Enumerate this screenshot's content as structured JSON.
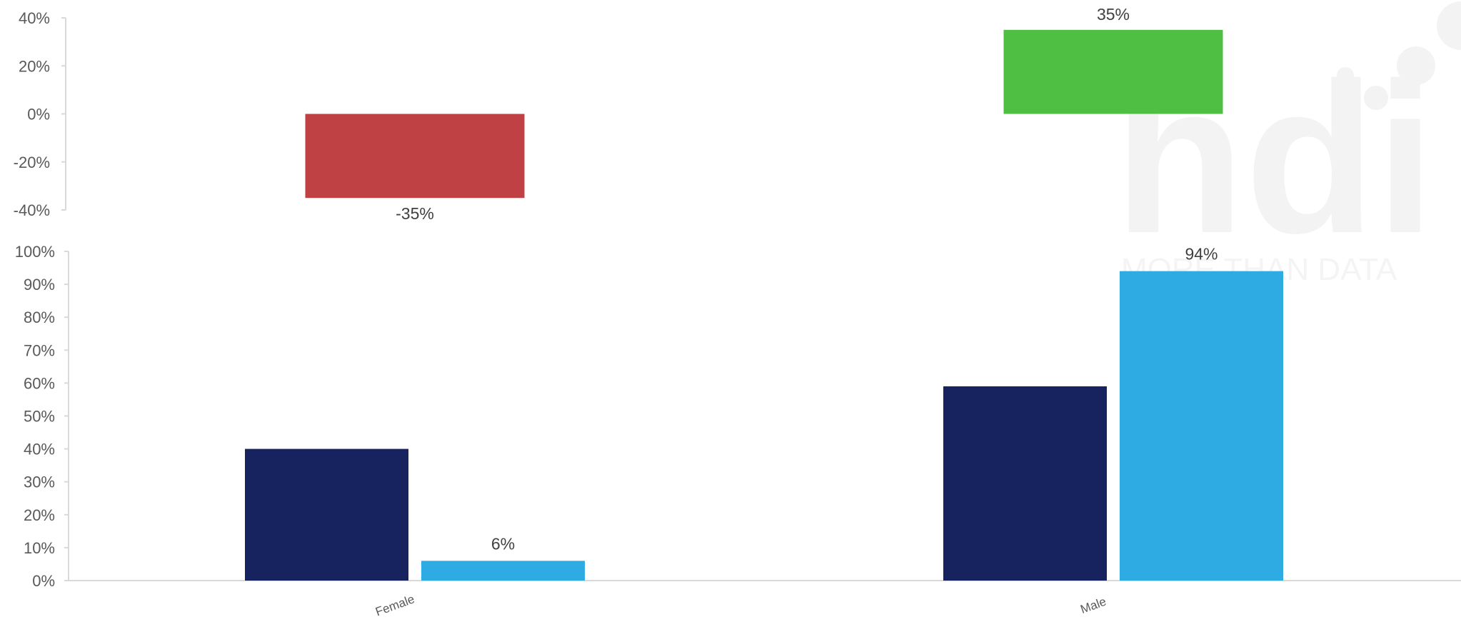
{
  "watermark": {
    "logo": "hdi",
    "tagline": "MORE THAN DATA"
  },
  "colors": {
    "negative": "#c04143",
    "positive": "#4fbf44",
    "series_dark": "#16235e",
    "series_light": "#2eabe2",
    "axis": "#d9d9d9",
    "watermark": "#f3f3f3"
  },
  "chart_data": [
    {
      "type": "bar",
      "categories": [
        "Female",
        "Male"
      ],
      "values": [
        -35,
        35
      ],
      "data_labels": [
        "-35%",
        "35%"
      ],
      "ylim": [
        -40,
        40
      ],
      "yticks": [
        "40%",
        "20%",
        "0%",
        "-20%",
        "-40%"
      ],
      "title": "",
      "xlabel": "",
      "ylabel": ""
    },
    {
      "type": "bar",
      "categories": [
        "Female",
        "Male"
      ],
      "series": [
        {
          "values": [
            40,
            59
          ],
          "data_labels": [
            "",
            ""
          ]
        },
        {
          "values": [
            6,
            94
          ],
          "data_labels": [
            "6%",
            "94%"
          ]
        }
      ],
      "ylim": [
        0,
        100
      ],
      "yticks": [
        "100%",
        "90%",
        "80%",
        "70%",
        "60%",
        "50%",
        "40%",
        "30%",
        "20%",
        "10%",
        "0%"
      ],
      "title": "",
      "xlabel": "",
      "ylabel": ""
    }
  ]
}
